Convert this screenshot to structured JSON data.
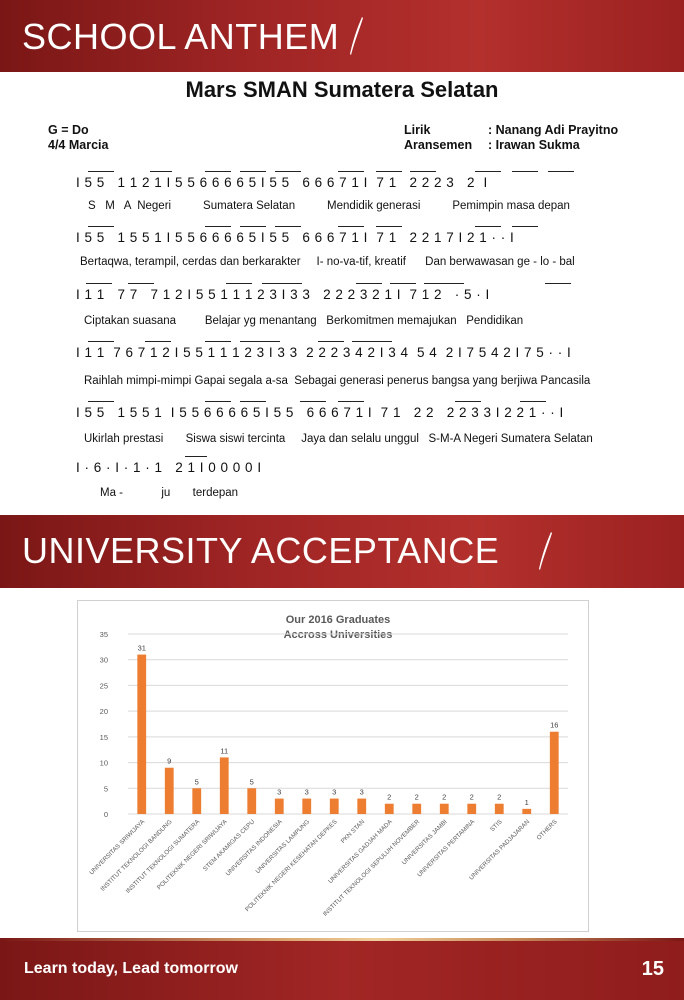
{
  "section1": {
    "title": "SCHOOL ANTHEM"
  },
  "song": {
    "title": "Mars SMAN Sumatera Selatan",
    "key": "G = Do",
    "time": "4/4 Marcia",
    "lyricist_label": "Lirik",
    "lyricist": ": Nanang Adi Prayitno",
    "arranger_label": "Aransemen",
    "arranger": ": Irawan Sukma",
    "notation": [
      "I 5 5   1 1 2 1 I 5 5 6 6 6 6 5 I 5 5   6 6 6 7 1 I  7 1   2 2 2 3   2  I",
      "I 5 5   1 5 5 1 I 5 5 6 6 6 6 5 I 5 5   6 6 6 7 1 I  7 1   2 2 1 7 I 2 1 · · I",
      "I 1 1   7 7   7 1 2 I 5 5 1 1 1 2 3 I 3 3   2 2 2 3 2 1 I  7 1 2   · 5 · I",
      "I 1 1  7 6 7 1 2 I 5 5 1 1 1 2 3 I 3 3  2 2 2 3 4 2 I 3 4  5 4  2 I 7 5 4 2 I 7 5 · · I",
      "I 5 5   1 5 5 1  I 5 5 6 6 6 6 5 I 5 5   6 6 6 7 1 I  7 1   2 2   2 2 3 3 I 2 2 1 · · I",
      "I · 6 · I · 1 · 1   2 1 I 0 0 0 0 I"
    ],
    "lyrics": [
      "S   M   A  Negeri          Sumatera Selatan          Mendidik generasi          Pemimpin masa depan",
      "Bertaqwa, terampil, cerdas dan berkarakter     I- no-va-tif, kreatif      Dan berwawasan ge - lo - bal",
      "Ciptakan suasana         Belajar yg menantang   Berkomitmen memajukan   Pendidikan",
      "Raihlah mimpi-mimpi Gapai segala a-sa  Sebagai generasi penerus bangsa yang berjiwa Pancasila",
      "Ukirlah prestasi       Siswa siswi tercinta     Jaya dan selalu unggul   S-M-A Negeri Sumatera Selatan",
      "Ma -            ju       terdepan"
    ]
  },
  "section2": {
    "title": "UNIVERSITY ACCEPTANCE"
  },
  "chart_data": {
    "type": "bar",
    "title_lines": [
      "Our 2016 Graduates",
      "Accross Universities"
    ],
    "categories": [
      "UNIVERSITAS SRIWIJAYA",
      "INSTITUT TEKNOLOGI BANDUNG",
      "INSTITUT TEKNOLOGI SUMATERA",
      "POLITEKNIK NEGERI SRIWIJAYA",
      "STEM AKAMIGAS CEPU",
      "UNIVERSITAS INDONESIA",
      "UNIVERSITAS LAMPUNG",
      "POLITEKNIK NEGERI KESEHATAN DEPKES",
      "PKN STAN",
      "UNIVERSITAS GADJAH MADA",
      "INSTITUT TEKNOLOGI SEPULUH NOVEMBER",
      "UNIVERSITAS JAMBI",
      "UNIVERSITAS PERTAMINA",
      "STIS",
      "UNIVERSITAS PADJAJARAN",
      "OTHERS"
    ],
    "values": [
      31,
      9,
      5,
      11,
      5,
      3,
      3,
      3,
      3,
      2,
      2,
      2,
      2,
      2,
      1,
      16
    ],
    "yticks": [
      "0",
      "5",
      "10",
      "15",
      "20",
      "25",
      "30",
      "35"
    ],
    "ylim": [
      0,
      35
    ],
    "grid": true,
    "bar_color": "#ed7d31"
  },
  "footer": {
    "motto": "Learn today, Lead tomorrow",
    "page": "15"
  }
}
